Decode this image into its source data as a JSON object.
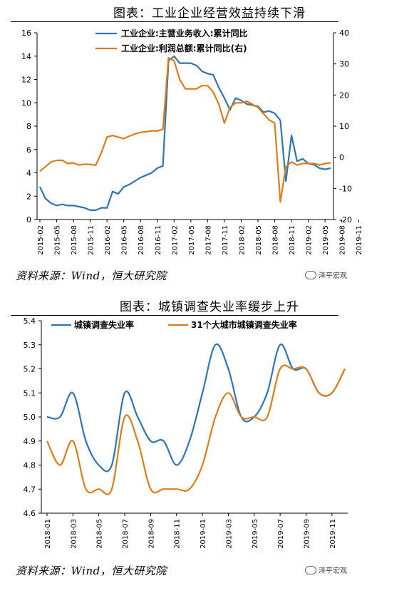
{
  "chart1": {
    "title": "图表：工业企业经营效益持续下滑",
    "source": "资料来源：Wind，恒大研究院",
    "logo": "泽平宏观",
    "chart_data": {
      "type": "line",
      "x_ticks": [
        "2015-02",
        "2015-05",
        "2015-08",
        "2015-11",
        "2016-02",
        "2016-05",
        "2016-08",
        "2016-11",
        "2017-02",
        "2017-05",
        "2017-08",
        "2017-11",
        "2018-02",
        "2018-05",
        "2018-08",
        "2018-11",
        "2019-02",
        "2019-05",
        "2019-08",
        "2019-11"
      ],
      "y_left_ticks": [
        "0",
        "2",
        "4",
        "6",
        "8",
        "10",
        "12",
        "14",
        "16"
      ],
      "y_right_ticks": [
        "-20",
        "-10",
        "0",
        "10",
        "20",
        "30",
        "40"
      ],
      "ylim_left": [
        0,
        16
      ],
      "ylim_right": [
        -20,
        40
      ],
      "series": [
        {
          "name": "工业企业:主营业务收入:累计同比",
          "axis": "left",
          "color": "#2e75b6",
          "values": [
            2.8,
            1.8,
            1.4,
            1.2,
            1.3,
            1.2,
            1.2,
            1.1,
            1.0,
            0.8,
            0.8,
            1.0,
            1.0,
            2.4,
            2.2,
            2.8,
            3.0,
            3.3,
            3.6,
            3.8,
            4.0,
            4.4,
            4.6,
            13.6,
            14.0,
            13.4,
            13.4,
            13.4,
            13.2,
            12.7,
            12.5,
            12.4,
            11.3,
            10.4,
            9.4,
            10.4,
            10.2,
            9.9,
            9.8,
            9.7,
            9.2,
            9.3,
            9.1,
            8.5,
            3.3,
            7.2,
            5.0,
            5.2,
            4.8,
            4.7,
            4.4,
            4.3,
            4.4
          ]
        },
        {
          "name": "工业企业:利润总额:累计同比(右)",
          "axis": "right",
          "color": "#e07b1a",
          "values": [
            -4.5,
            -3.0,
            -1.5,
            -1.0,
            -1.0,
            -2.0,
            -1.8,
            -2.5,
            -2.2,
            -2.3,
            -2.5,
            1.5,
            6.5,
            7.0,
            6.5,
            6.0,
            6.8,
            7.5,
            8.0,
            8.2,
            8.5,
            8.5,
            9.0,
            32.0,
            31.0,
            25.0,
            22.0,
            22.0,
            22.0,
            23.0,
            23.0,
            21.0,
            17.0,
            11.0,
            16.0,
            17.5,
            17.5,
            18.0,
            17.0,
            16.0,
            14.0,
            12.0,
            11.0,
            -14.3,
            -3.0,
            -1.5,
            -2.5,
            -2.0,
            -2.0,
            -2.0,
            -2.5,
            -2.0,
            -1.8
          ]
        }
      ]
    }
  },
  "chart2": {
    "title": "图表：城镇调查失业率缓步上升",
    "source": "资料来源：Wind，恒大研究院",
    "logo": "泽平宏观",
    "chart_data": {
      "type": "line",
      "x_ticks": [
        "2018-01",
        "2018-03",
        "2018-05",
        "2018-07",
        "2018-09",
        "2018-11",
        "2019-01",
        "2019-03",
        "2019-05",
        "2019-07",
        "2019-09",
        "2019-11"
      ],
      "y_ticks": [
        "4.6",
        "4.7",
        "4.8",
        "4.9",
        "5.0",
        "5.1",
        "5.2",
        "5.3",
        "5.4"
      ],
      "ylim": [
        4.6,
        5.4
      ],
      "series": [
        {
          "name": "城镇调查失业率",
          "color": "#2e75b6",
          "values": [
            5.0,
            5.0,
            5.1,
            4.9,
            4.8,
            4.8,
            5.1,
            5.0,
            4.9,
            4.9,
            4.8,
            4.9,
            5.1,
            5.3,
            5.2,
            5.0,
            5.0,
            5.1,
            5.3,
            5.2,
            5.2,
            5.1,
            5.1,
            5.2
          ]
        },
        {
          "name": "31个大城市城镇调查失业率",
          "color": "#e07b1a",
          "values": [
            4.9,
            4.8,
            4.9,
            4.7,
            4.7,
            4.7,
            5.0,
            4.9,
            4.7,
            4.7,
            4.7,
            4.7,
            4.8,
            5.0,
            5.1,
            5.0,
            5.0,
            5.0,
            5.2,
            5.2,
            5.2,
            5.1,
            5.1,
            5.2
          ]
        }
      ]
    }
  }
}
